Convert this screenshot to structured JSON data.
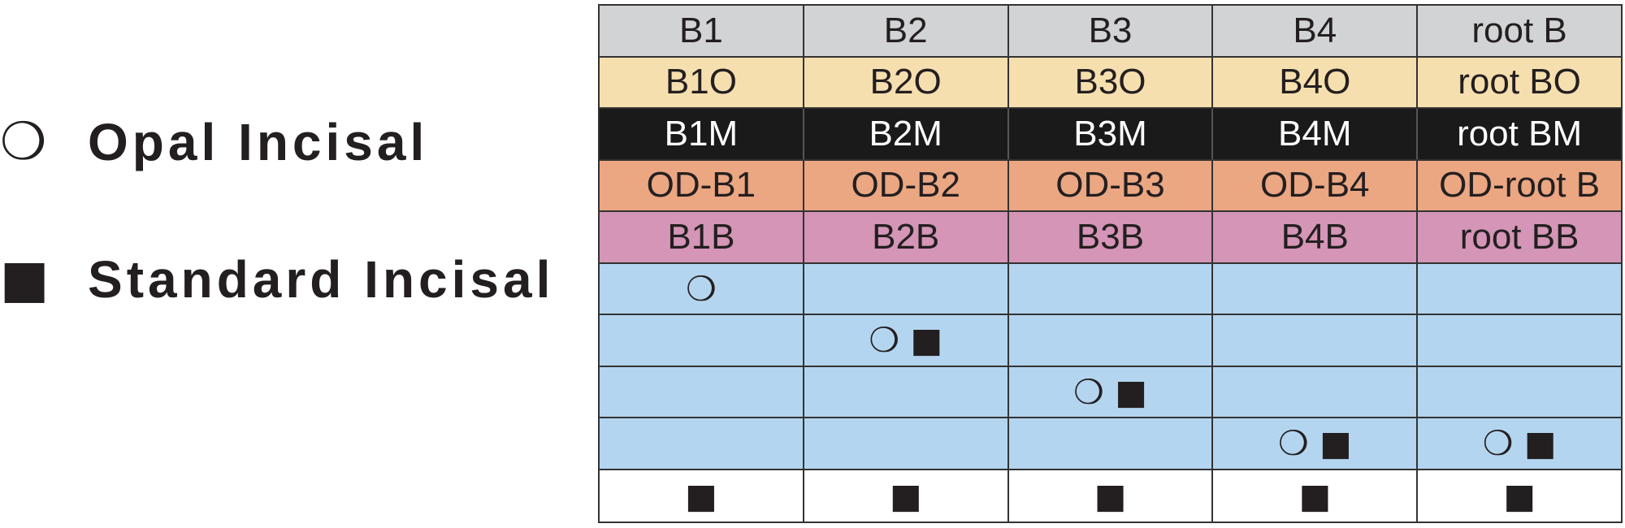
{
  "legend": {
    "items": [
      {
        "symbol": "❍",
        "label": "Opal Incisal"
      },
      {
        "symbol": "■",
        "label": "Standard Incisal"
      }
    ]
  },
  "table": {
    "rows": [
      [
        "B1",
        "B2",
        "B3",
        "B4",
        "root B"
      ],
      [
        "B1O",
        "B2O",
        "B3O",
        "B4O",
        "root BO"
      ],
      [
        "B1M",
        "B2M",
        "B3M",
        "B4M",
        "root BM"
      ],
      [
        "OD-B1",
        "OD-B2",
        "OD-B3",
        "OD-B4",
        "OD-root B"
      ],
      [
        "B1B",
        "B2B",
        "B3B",
        "B4B",
        "root BB"
      ],
      [
        "❍",
        null,
        null,
        null,
        null
      ],
      [
        null,
        "❍ ■",
        null,
        null,
        null
      ],
      [
        null,
        null,
        "❍ ■",
        null,
        null
      ],
      [
        null,
        null,
        null,
        "❍ ■",
        "❍ ■"
      ],
      [
        "■",
        "■",
        "■",
        "■",
        "■"
      ]
    ]
  }
}
